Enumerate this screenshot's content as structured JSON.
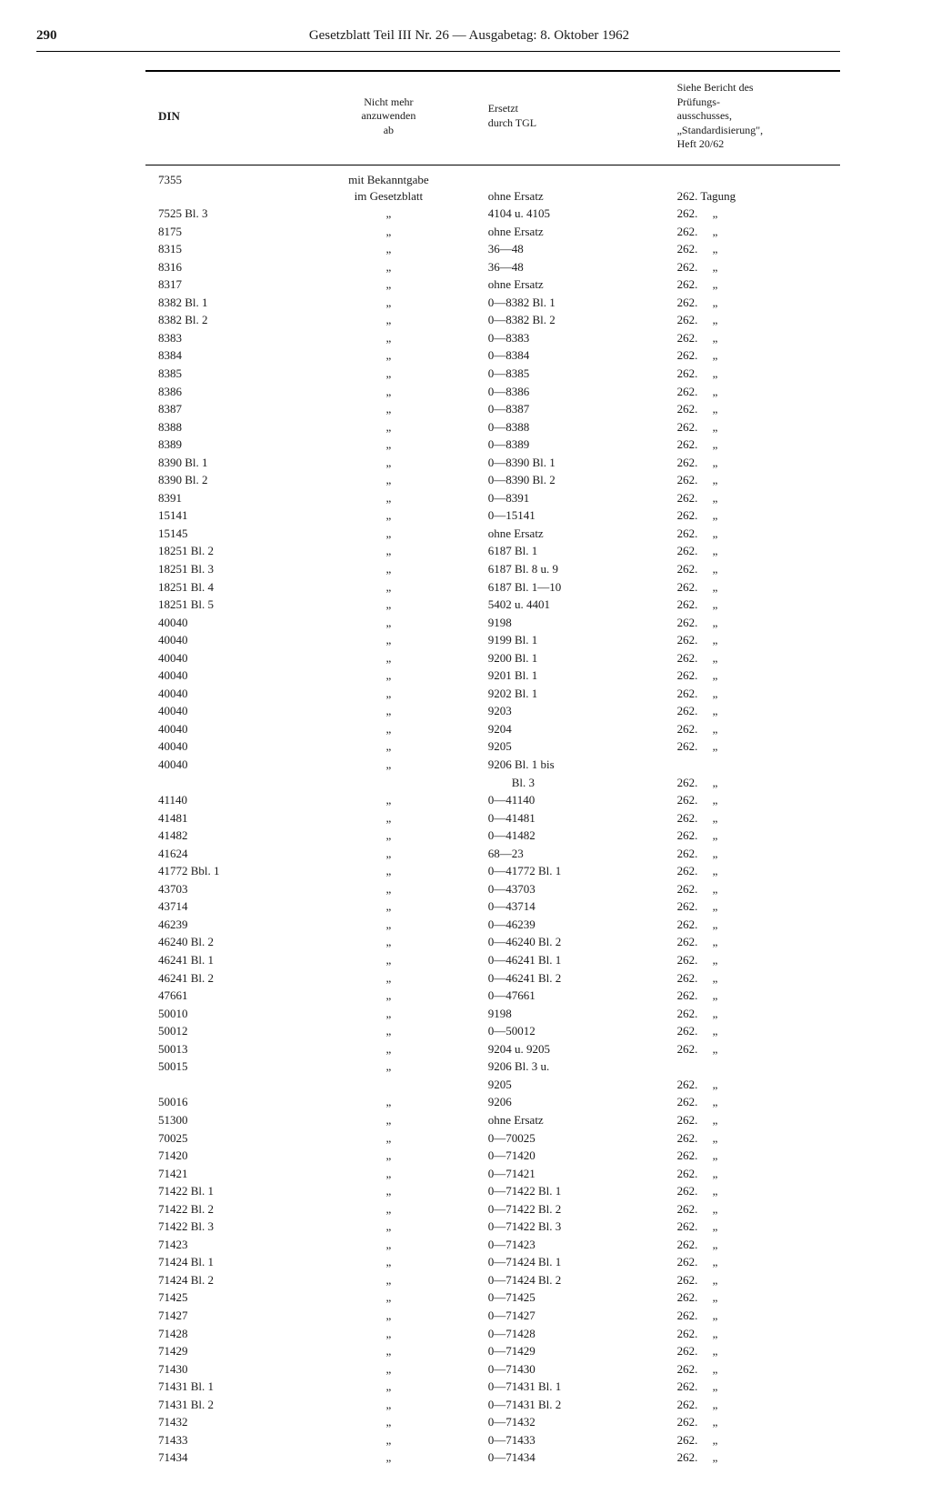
{
  "page": {
    "number": "290",
    "title": "Gesetzblatt Teil III Nr. 26 — Ausgabetag: 8. Oktober 1962"
  },
  "headers": {
    "din": "DIN",
    "nicht": "Nicht mehr\nanzuwenden\nab",
    "ersetzt": "Ersetzt\ndurch TGL",
    "bericht": "Siehe Bericht des\nPrüfungs-\nausschusses,\n„Standardisierung\",\nHeft 20/62"
  },
  "first_row": {
    "din": "7355",
    "nicht": "mit Bekanntgabe\nim Gesetzblatt",
    "ersetzt": "ohne Ersatz",
    "bericht": "262. Tagung"
  },
  "rows": [
    {
      "din": "7525 Bl. 3",
      "ersetzt": "4104 u. 4105",
      "bericht": "262."
    },
    {
      "din": "8175",
      "ersetzt": "ohne Ersatz",
      "bericht": "262."
    },
    {
      "din": "8315",
      "ersetzt": "36—48",
      "bericht": "262."
    },
    {
      "din": "8316",
      "ersetzt": "36—48",
      "bericht": "262."
    },
    {
      "din": "8317",
      "ersetzt": "ohne Ersatz",
      "bericht": "262."
    },
    {
      "din": "8382 Bl. 1",
      "ersetzt": "0—8382 Bl. 1",
      "bericht": "262."
    },
    {
      "din": "8382 Bl. 2",
      "ersetzt": "0—8382 Bl. 2",
      "bericht": "262."
    },
    {
      "din": "8383",
      "ersetzt": "0—8383",
      "bericht": "262."
    },
    {
      "din": "8384",
      "ersetzt": "0—8384",
      "bericht": "262."
    },
    {
      "din": "8385",
      "ersetzt": "0—8385",
      "bericht": "262."
    },
    {
      "din": "8386",
      "ersetzt": "0—8386",
      "bericht": "262."
    },
    {
      "din": "8387",
      "ersetzt": "0—8387",
      "bericht": "262."
    },
    {
      "din": "8388",
      "ersetzt": "0—8388",
      "bericht": "262."
    },
    {
      "din": "8389",
      "ersetzt": "0—8389",
      "bericht": "262."
    },
    {
      "din": "8390 Bl. 1",
      "ersetzt": "0—8390 Bl. 1",
      "bericht": "262."
    },
    {
      "din": "8390 Bl. 2",
      "ersetzt": "0—8390 Bl. 2",
      "bericht": "262."
    },
    {
      "din": "8391",
      "ersetzt": "0—8391",
      "bericht": "262."
    },
    {
      "din": "15141",
      "ersetzt": "0—15141",
      "bericht": "262."
    },
    {
      "din": "15145",
      "ersetzt": "ohne Ersatz",
      "bericht": "262."
    },
    {
      "din": "18251 Bl. 2",
      "ersetzt": "6187 Bl. 1",
      "bericht": "262."
    },
    {
      "din": "18251 Bl. 3",
      "ersetzt": "6187 Bl. 8 u. 9",
      "bericht": "262."
    },
    {
      "din": "18251 Bl. 4",
      "ersetzt": "6187 Bl. 1—10",
      "bericht": "262."
    },
    {
      "din": "18251 Bl. 5",
      "ersetzt": "5402 u. 4401",
      "bericht": "262."
    },
    {
      "din": "40040",
      "ersetzt": "9198",
      "bericht": "262."
    },
    {
      "din": "40040",
      "ersetzt": "9199 Bl. 1",
      "bericht": "262."
    },
    {
      "din": "40040",
      "ersetzt": "9200 Bl. 1",
      "bericht": "262."
    },
    {
      "din": "40040",
      "ersetzt": "9201 Bl. 1",
      "bericht": "262."
    },
    {
      "din": "40040",
      "ersetzt": "9202 Bl. 1",
      "bericht": "262."
    },
    {
      "din": "40040",
      "ersetzt": "9203",
      "bericht": "262."
    },
    {
      "din": "40040",
      "ersetzt": "9204",
      "bericht": "262."
    },
    {
      "din": "40040",
      "ersetzt": "9205",
      "bericht": "262."
    },
    {
      "din": "40040",
      "ersetzt": "9206 Bl. 1 bis",
      "bericht": ""
    },
    {
      "din": "",
      "ersetzt": "        Bl. 3",
      "bericht": "262.",
      "noditto": true
    },
    {
      "din": "41140",
      "ersetzt": "0—41140",
      "bericht": "262."
    },
    {
      "din": "41481",
      "ersetzt": "0—41481",
      "bericht": "262."
    },
    {
      "din": "41482",
      "ersetzt": "0—41482",
      "bericht": "262."
    },
    {
      "din": "41624",
      "ersetzt": "68—23",
      "bericht": "262."
    },
    {
      "din": "41772 Bbl. 1",
      "ersetzt": "0—41772 Bl. 1",
      "bericht": "262."
    },
    {
      "din": "43703",
      "ersetzt": "0—43703",
      "bericht": "262."
    },
    {
      "din": "43714",
      "ersetzt": "0—43714",
      "bericht": "262."
    },
    {
      "din": "46239",
      "ersetzt": "0—46239",
      "bericht": "262."
    },
    {
      "din": "46240 Bl. 2",
      "ersetzt": "0—46240 Bl. 2",
      "bericht": "262."
    },
    {
      "din": "46241 Bl. 1",
      "ersetzt": "0—46241 Bl. 1",
      "bericht": "262."
    },
    {
      "din": "46241 Bl. 2",
      "ersetzt": "0—46241 Bl. 2",
      "bericht": "262."
    },
    {
      "din": "47661",
      "ersetzt": "0—47661",
      "bericht": "262."
    },
    {
      "din": "50010",
      "ersetzt": "9198",
      "bericht": "262."
    },
    {
      "din": "50012",
      "ersetzt": "0—50012",
      "bericht": "262."
    },
    {
      "din": "50013",
      "ersetzt": "9204 u. 9205",
      "bericht": "262."
    },
    {
      "din": "50015",
      "ersetzt": "9206 Bl. 3 u.",
      "bericht": ""
    },
    {
      "din": "",
      "ersetzt": "9205",
      "bericht": "262.",
      "noditto": true
    },
    {
      "din": "50016",
      "ersetzt": "9206",
      "bericht": "262."
    },
    {
      "din": "51300",
      "ersetzt": "ohne Ersatz",
      "bericht": "262."
    },
    {
      "din": "70025",
      "ersetzt": "0—70025",
      "bericht": "262."
    },
    {
      "din": "71420",
      "ersetzt": "0—71420",
      "bericht": "262."
    },
    {
      "din": "71421",
      "ersetzt": "0—71421",
      "bericht": "262."
    },
    {
      "din": "71422 Bl. 1",
      "ersetzt": "0—71422 Bl. 1",
      "bericht": "262."
    },
    {
      "din": "71422 Bl. 2",
      "ersetzt": "0—71422 Bl. 2",
      "bericht": "262."
    },
    {
      "din": "71422 Bl. 3",
      "ersetzt": "0—71422 Bl. 3",
      "bericht": "262."
    },
    {
      "din": "71423",
      "ersetzt": "0—71423",
      "bericht": "262."
    },
    {
      "din": "71424 Bl. 1",
      "ersetzt": "0—71424 Bl. 1",
      "bericht": "262."
    },
    {
      "din": "71424 Bl. 2",
      "ersetzt": "0—71424 Bl. 2",
      "bericht": "262."
    },
    {
      "din": "71425",
      "ersetzt": "0—71425",
      "bericht": "262."
    },
    {
      "din": "71427",
      "ersetzt": "0—71427",
      "bericht": "262."
    },
    {
      "din": "71428",
      "ersetzt": "0—71428",
      "bericht": "262."
    },
    {
      "din": "71429",
      "ersetzt": "0—71429",
      "bericht": "262."
    },
    {
      "din": "71430",
      "ersetzt": "0—71430",
      "bericht": "262."
    },
    {
      "din": "71431 Bl. 1",
      "ersetzt": "0—71431 Bl. 1",
      "bericht": "262."
    },
    {
      "din": "71431 Bl. 2",
      "ersetzt": "0—71431 Bl. 2",
      "bericht": "262."
    },
    {
      "din": "71432",
      "ersetzt": "0—71432",
      "bericht": "262."
    },
    {
      "din": "71433",
      "ersetzt": "0—71433",
      "bericht": "262."
    },
    {
      "din": "71434",
      "ersetzt": "0—71434",
      "bericht": "262."
    }
  ],
  "ditto_mark": "„",
  "bericht_ditto": "„"
}
